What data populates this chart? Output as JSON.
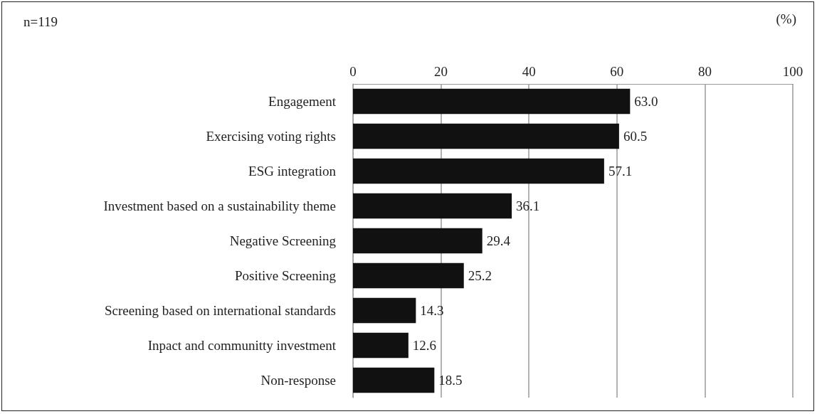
{
  "chart_data": {
    "type": "bar",
    "orientation": "horizontal",
    "categories": [
      "Engagement",
      "Exercising voting rights",
      "ESG integration",
      "Investment based on a sustainability theme",
      "Negative Screening",
      "Positive Screening",
      "Screening based on international standards",
      "Inpact and communitty investment",
      "Non-response"
    ],
    "values": [
      63.0,
      60.5,
      57.1,
      36.1,
      29.4,
      25.2,
      14.3,
      12.6,
      18.5
    ],
    "value_labels": [
      "63.0",
      "60.5",
      "57.1",
      "36.1",
      "29.4",
      "25.2",
      "14.3",
      "12.6",
      "18.5"
    ],
    "color": "#111111",
    "xlim": [
      0,
      100
    ],
    "xticks": [
      0,
      20,
      40,
      60,
      80,
      100
    ],
    "grid": "x",
    "annotations": [
      "n=119",
      "(%)"
    ]
  }
}
